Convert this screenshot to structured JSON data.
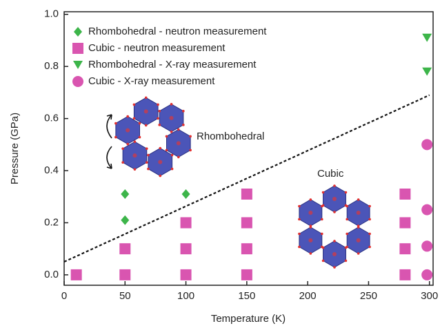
{
  "chart_data": {
    "type": "scatter",
    "xlabel": "Temperature (K)",
    "ylabel": "Pressure (GPa)",
    "xlim": [
      0,
      303
    ],
    "ylim": [
      -0.04,
      1.01
    ],
    "xticks": [
      0,
      50,
      100,
      150,
      200,
      250,
      300
    ],
    "yticks": [
      {
        "value": 0,
        "label": "0.0"
      },
      0.2,
      0.4,
      0.6,
      0.8,
      {
        "value": 1,
        "label": "1.0"
      }
    ],
    "series": [
      {
        "name": "Rhombohedral - neutron measurement",
        "color": "#3db54a",
        "marker": "diamond",
        "x": [
          50,
          50,
          100
        ],
        "values": [
          0.31,
          0.21,
          0.31
        ]
      },
      {
        "name": "Cubic - neutron measurement",
        "color": "#d955b0",
        "marker": "square",
        "x": [
          10,
          50,
          50,
          100,
          100,
          100,
          150,
          150,
          150,
          150,
          280,
          280,
          280,
          280
        ],
        "values": [
          0,
          0,
          0.1,
          0,
          0.1,
          0.2,
          0,
          0.1,
          0.2,
          0.31,
          0,
          0.1,
          0.2,
          0.31
        ]
      },
      {
        "name": "Rhombohedral - X-ray measurement",
        "color": "#3db54a",
        "marker": "triangle",
        "x": [
          298,
          298
        ],
        "values": [
          0.91,
          0.78
        ]
      },
      {
        "name": "Cubic - X-ray measurement",
        "color": "#d955b0",
        "marker": "circle",
        "x": [
          298,
          298,
          298,
          298
        ],
        "values": [
          0,
          0.11,
          0.25,
          0.5
        ]
      }
    ],
    "phase_boundary": {
      "x": [
        0,
        300
      ],
      "values": [
        0.05,
        0.69
      ]
    },
    "annotations": [
      "Rhombohedral",
      "Cubic"
    ]
  }
}
